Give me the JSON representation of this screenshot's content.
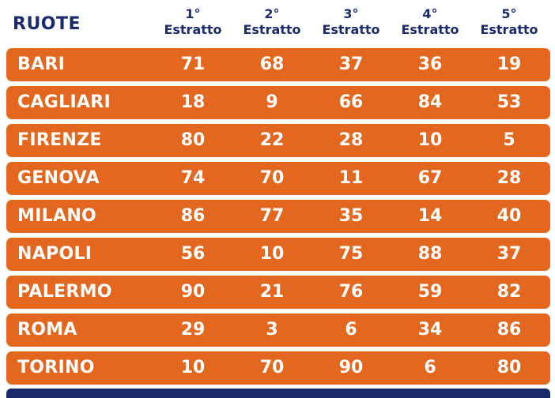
{
  "header": {
    "ruote_label": "RUOTE",
    "columns": [
      {
        "ordinal": "1°",
        "label": "Estratto"
      },
      {
        "ordinal": "2°",
        "label": "Estratto"
      },
      {
        "ordinal": "3°",
        "label": "Estratto"
      },
      {
        "ordinal": "4°",
        "label": "Estratto"
      },
      {
        "ordinal": "5°",
        "label": "Estratto"
      }
    ]
  },
  "rows": [
    {
      "city": "BARI",
      "values": [
        "71",
        "68",
        "37",
        "36",
        "19"
      ]
    },
    {
      "city": "CAGLIARI",
      "values": [
        "18",
        "9",
        "66",
        "84",
        "53"
      ]
    },
    {
      "city": "FIRENZE",
      "values": [
        "80",
        "22",
        "28",
        "10",
        "5"
      ]
    },
    {
      "city": "GENOVA",
      "values": [
        "74",
        "70",
        "11",
        "67",
        "28"
      ]
    },
    {
      "city": "MILANO",
      "values": [
        "86",
        "77",
        "35",
        "14",
        "40"
      ]
    },
    {
      "city": "NAPOLI",
      "values": [
        "56",
        "10",
        "75",
        "88",
        "37"
      ]
    },
    {
      "city": "PALERMO",
      "values": [
        "90",
        "21",
        "76",
        "59",
        "82"
      ]
    },
    {
      "city": "ROMA",
      "values": [
        "29",
        "3",
        "6",
        "34",
        "86"
      ]
    },
    {
      "city": "TORINO",
      "values": [
        "10",
        "70",
        "90",
        "6",
        "80"
      ]
    }
  ],
  "colors": {
    "row_background": "#e3671f",
    "header_text": "#1a2a6c",
    "row_text": "#ffffff",
    "bottom_bar": "#1a2a6c"
  }
}
